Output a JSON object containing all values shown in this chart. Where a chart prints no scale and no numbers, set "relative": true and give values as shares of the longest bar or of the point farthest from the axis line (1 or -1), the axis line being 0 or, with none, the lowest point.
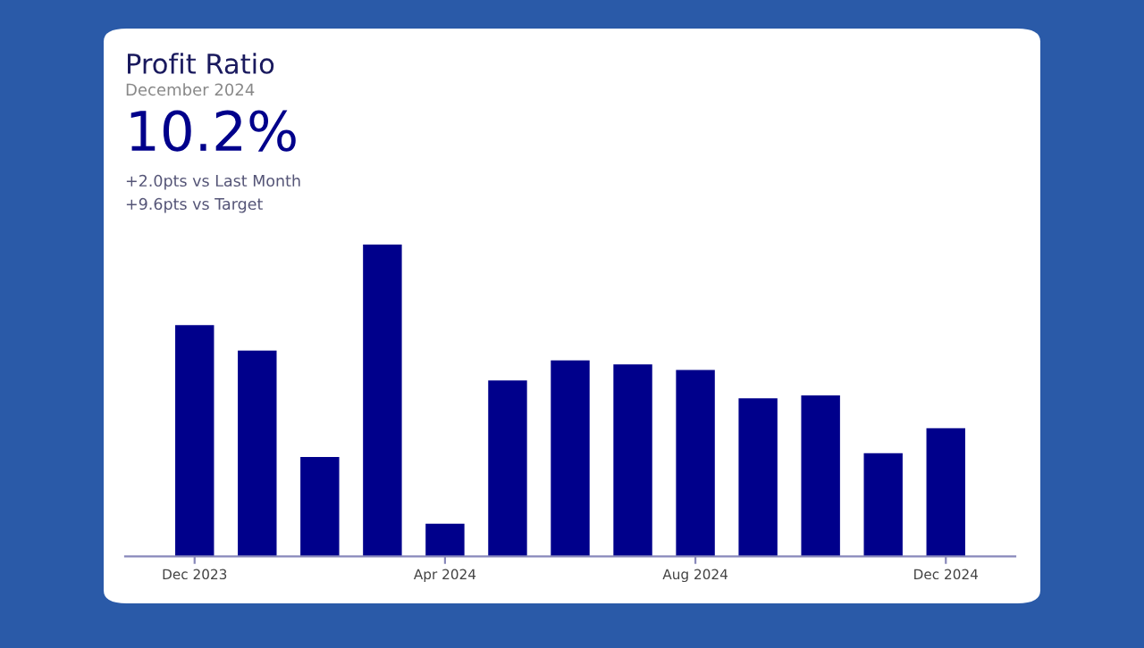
{
  "chart_data": {
    "type": "bar",
    "title": "Profit Ratio",
    "subtitle": "December 2024",
    "annotations": [
      "10.2%",
      "+2.0pts vs Last Month",
      "+9.6pts vs Target"
    ],
    "categories": [
      "Dec 2023",
      null,
      null,
      null,
      "Apr 2024",
      null,
      null,
      null,
      "Aug 2024",
      null,
      null,
      null,
      "Dec 2024"
    ],
    "values": [
      0.742,
      0.66,
      0.319,
      1,
      0.105,
      0.564,
      0.629,
      0.616,
      0.598,
      0.507,
      0.516,
      0.331,
      0.411
    ],
    "color": "#00008b",
    "relative": true
  }
}
